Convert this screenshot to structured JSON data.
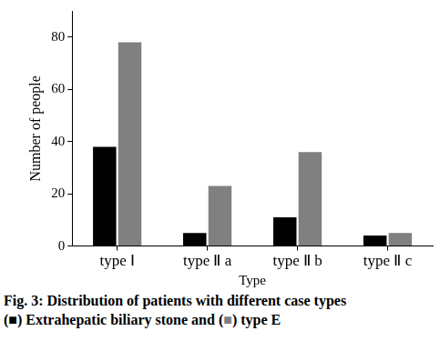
{
  "chart_data": {
    "type": "bar",
    "title": "Fig. 3: Distribution of patients with different case types",
    "subtitle": "(■) Extrahepatic biliary stone and (■) type E",
    "x_label": "Type",
    "y_label": "Number of people",
    "categories": [
      "type Ⅰ",
      "type Ⅱ a",
      "type Ⅱ b",
      "type Ⅱ c"
    ],
    "series": [
      {
        "name": "Extrahepatic biliary stone",
        "color": "#000000",
        "values": [
          38,
          5,
          11,
          4
        ]
      },
      {
        "name": "type E",
        "color": "#808080",
        "values": [
          78,
          23,
          36,
          5
        ]
      }
    ],
    "ylim": [
      0,
      90
    ],
    "yticks": [
      0,
      20,
      40,
      60,
      80
    ],
    "grid": false
  }
}
